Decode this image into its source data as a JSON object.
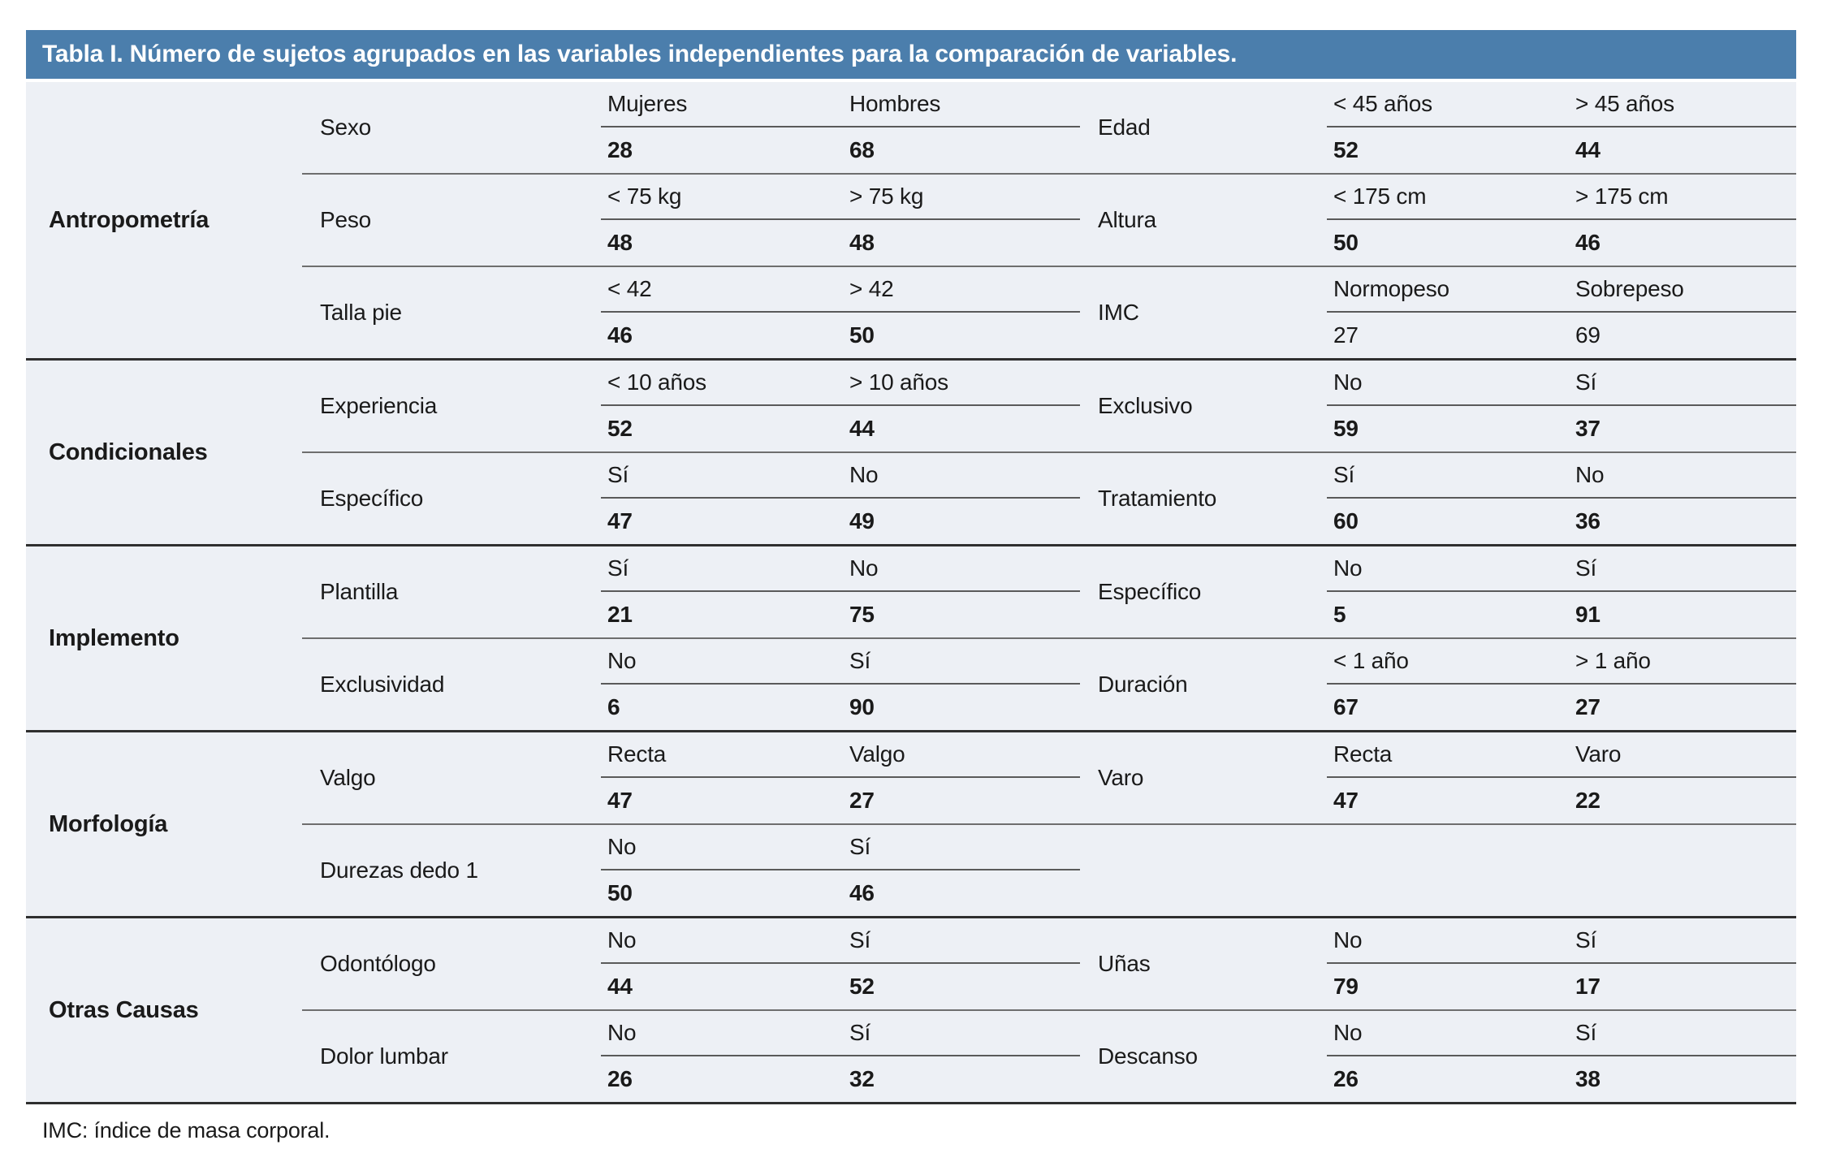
{
  "title": "Tabla I. Número de sujetos agrupados en las variables independientes para la comparación de variables.",
  "footnote": "IMC: índice de masa corporal.",
  "colors": {
    "header_bg": "#4B7EAC",
    "body_bg": "#EDF0F5",
    "line_dark": "#2F2F2F",
    "line_mid": "#6E6E6E",
    "line_label": "#5A5A5A",
    "title_text": "#FFFFFF",
    "body_text": "#1A1A1A"
  },
  "sections": [
    {
      "group": "Antropometría",
      "rows": [
        {
          "left": {
            "variable": "Sexo",
            "labels": [
              "Mujeres",
              "Hombres"
            ],
            "values": [
              "28",
              "68"
            ],
            "bold_values": true
          },
          "right": {
            "variable": "Edad",
            "labels": [
              "< 45 años",
              "> 45 años"
            ],
            "values": [
              "52",
              "44"
            ],
            "bold_values": true
          }
        },
        {
          "left": {
            "variable": "Peso",
            "labels": [
              "< 75 kg",
              "> 75 kg"
            ],
            "values": [
              "48",
              "48"
            ],
            "bold_values": true
          },
          "right": {
            "variable": "Altura",
            "labels": [
              "< 175 cm",
              "> 175 cm"
            ],
            "values": [
              "50",
              "46"
            ],
            "bold_values": true
          }
        },
        {
          "left": {
            "variable": "Talla pie",
            "labels": [
              "< 42",
              "> 42"
            ],
            "values": [
              "46",
              "50"
            ],
            "bold_values": true
          },
          "right": {
            "variable": "IMC",
            "labels": [
              "Normopeso",
              "Sobrepeso"
            ],
            "values": [
              "27",
              "69"
            ],
            "bold_values": false
          }
        }
      ]
    },
    {
      "group": "Condicionales",
      "rows": [
        {
          "left": {
            "variable": "Experiencia",
            "labels": [
              "< 10 años",
              "> 10 años"
            ],
            "values": [
              "52",
              "44"
            ],
            "bold_values": true
          },
          "right": {
            "variable": "Exclusivo",
            "labels": [
              "No",
              "Sí"
            ],
            "values": [
              "59",
              "37"
            ],
            "bold_values": true
          }
        },
        {
          "left": {
            "variable": "Específico",
            "labels": [
              "Sí",
              "No"
            ],
            "values": [
              "47",
              "49"
            ],
            "bold_values": true
          },
          "right": {
            "variable": "Tratamiento",
            "labels": [
              "Sí",
              "No"
            ],
            "values": [
              "60",
              "36"
            ],
            "bold_values": true
          }
        }
      ]
    },
    {
      "group": "Implemento",
      "rows": [
        {
          "left": {
            "variable": "Plantilla",
            "labels": [
              "Sí",
              "No"
            ],
            "values": [
              "21",
              "75"
            ],
            "bold_values": true
          },
          "right": {
            "variable": "Específico",
            "labels": [
              "No",
              "Sí"
            ],
            "values": [
              "5",
              "91"
            ],
            "bold_values": true
          }
        },
        {
          "left": {
            "variable": "Exclusividad",
            "labels": [
              "No",
              "Sí"
            ],
            "values": [
              "6",
              "90"
            ],
            "bold_values": true
          },
          "right": {
            "variable": "Duración",
            "labels": [
              "< 1 año",
              "> 1 año"
            ],
            "values": [
              "67",
              "27"
            ],
            "bold_values": true
          }
        }
      ]
    },
    {
      "group": "Morfología",
      "rows": [
        {
          "left": {
            "variable": "Valgo",
            "labels": [
              "Recta",
              "Valgo"
            ],
            "values": [
              "47",
              "27"
            ],
            "bold_values": true
          },
          "right": {
            "variable": "Varo",
            "labels": [
              "Recta",
              "Varo"
            ],
            "values": [
              "47",
              "22"
            ],
            "bold_values": true
          }
        },
        {
          "left": {
            "variable": "Durezas dedo 1",
            "labels": [
              "No",
              "Sí"
            ],
            "values": [
              "50",
              "46"
            ],
            "bold_values": true
          },
          "right": null
        }
      ]
    },
    {
      "group": "Otras Causas",
      "rows": [
        {
          "left": {
            "variable": "Odontólogo",
            "labels": [
              "No",
              "Sí"
            ],
            "values": [
              "44",
              "52"
            ],
            "bold_values": true
          },
          "right": {
            "variable": "Uñas",
            "labels": [
              "No",
              "Sí"
            ],
            "values": [
              "79",
              "17"
            ],
            "bold_values": true
          }
        },
        {
          "left": {
            "variable": "Dolor lumbar",
            "labels": [
              "No",
              "Sí"
            ],
            "values": [
              "26",
              "32"
            ],
            "bold_values": true
          },
          "right": {
            "variable": "Descanso",
            "labels": [
              "No",
              "Sí"
            ],
            "values": [
              "26",
              "38"
            ],
            "bold_values": true
          }
        }
      ]
    }
  ]
}
